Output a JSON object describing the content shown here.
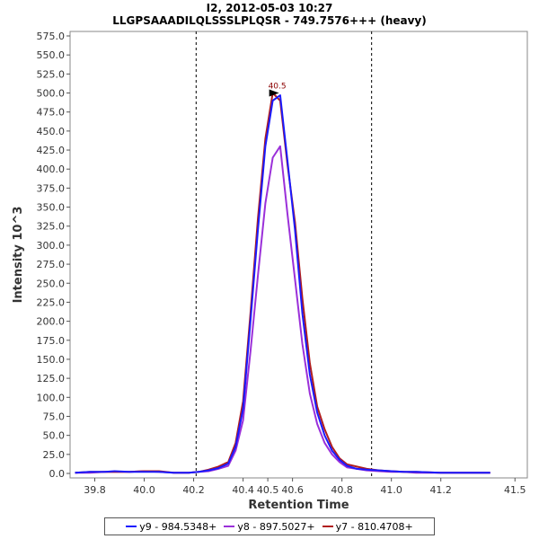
{
  "header": {
    "title": "I2, 2012-05-03 10:27",
    "subtitle": "LLGPSAAADILQLSSSLPLQSR - 749.7576+++ (heavy)"
  },
  "chart_data": {
    "type": "line",
    "title": "I2, 2012-05-03 10:27",
    "subtitle": "LLGPSAAADILQLSSSLPLQSR - 749.7576+++ (heavy)",
    "xlabel": "Retention Time",
    "ylabel": "Intensity 10^3",
    "xlim": [
      39.7,
      41.55
    ],
    "ylim": [
      0,
      575
    ],
    "x_ticks": [
      "39.8",
      "40.0",
      "40.2",
      "40.4",
      "40.5",
      "40.6",
      "40.8",
      "41.0",
      "41.2",
      "41.5"
    ],
    "y_ticks": [
      "0.0",
      "25.0",
      "50.0",
      "75.0",
      "100.0",
      "125.0",
      "150.0",
      "175.0",
      "200.0",
      "225.0",
      "250.0",
      "275.0",
      "300.0",
      "325.0",
      "350.0",
      "375.0",
      "400.0",
      "425.0",
      "450.0",
      "475.0",
      "500.0",
      "525.0",
      "550.0",
      "575.0"
    ],
    "grid": false,
    "vlines": [
      40.21,
      40.92
    ],
    "peak_annotation": {
      "label": "40.5",
      "x": 40.56,
      "y": 500
    },
    "legend_position": "bottom",
    "series": [
      {
        "name": "y9 - 984.5348+",
        "color": "#1a1aff",
        "x": [
          39.72,
          39.78,
          39.84,
          39.88,
          39.94,
          40.0,
          40.06,
          40.12,
          40.18,
          40.22,
          40.26,
          40.3,
          40.34,
          40.37,
          40.4,
          40.43,
          40.46,
          40.49,
          40.52,
          40.55,
          40.58,
          40.61,
          40.64,
          40.67,
          40.7,
          40.73,
          40.76,
          40.79,
          40.82,
          40.86,
          40.9,
          40.95,
          41.0,
          41.05,
          41.1,
          41.2,
          41.3,
          41.4
        ],
        "y": [
          1,
          2,
          2,
          3,
          2,
          2,
          2,
          1,
          1,
          2,
          4,
          7,
          13,
          35,
          85,
          200,
          320,
          430,
          490,
          497,
          410,
          320,
          210,
          130,
          80,
          50,
          30,
          18,
          10,
          6,
          5,
          4,
          3,
          2,
          2,
          1,
          1,
          1
        ]
      },
      {
        "name": "y8 - 897.5027+",
        "color": "#9b30d9",
        "x": [
          39.72,
          39.78,
          39.84,
          39.88,
          39.94,
          40.0,
          40.06,
          40.12,
          40.18,
          40.22,
          40.26,
          40.3,
          40.34,
          40.37,
          40.4,
          40.43,
          40.46,
          40.49,
          40.52,
          40.55,
          40.58,
          40.61,
          40.64,
          40.67,
          40.7,
          40.73,
          40.76,
          40.79,
          40.82,
          40.86,
          40.9,
          40.95,
          41.0,
          41.05,
          41.1,
          41.2,
          41.3,
          41.4
        ],
        "y": [
          1,
          1,
          2,
          2,
          2,
          3,
          2,
          1,
          1,
          2,
          3,
          6,
          10,
          30,
          70,
          160,
          260,
          355,
          415,
          430,
          340,
          255,
          170,
          105,
          65,
          40,
          25,
          15,
          8,
          6,
          4,
          3,
          2,
          2,
          1,
          1,
          1,
          1
        ]
      },
      {
        "name": "y7 - 810.4708+",
        "color": "#b01e1e",
        "x": [
          39.72,
          39.78,
          39.84,
          39.88,
          39.94,
          40.0,
          40.06,
          40.12,
          40.18,
          40.22,
          40.26,
          40.3,
          40.34,
          40.37,
          40.4,
          40.43,
          40.46,
          40.49,
          40.52,
          40.55,
          40.58,
          40.61,
          40.64,
          40.67,
          40.7,
          40.73,
          40.76,
          40.79,
          40.82,
          40.86,
          40.9,
          40.95,
          41.0,
          41.05,
          41.1,
          41.2,
          41.3,
          41.4
        ],
        "y": [
          1,
          2,
          2,
          2,
          2,
          3,
          3,
          1,
          1,
          2,
          5,
          9,
          15,
          40,
          95,
          210,
          335,
          440,
          500,
          490,
          405,
          330,
          230,
          145,
          88,
          58,
          35,
          20,
          12,
          9,
          6,
          4,
          3,
          2,
          2,
          1,
          1,
          1
        ]
      }
    ]
  }
}
